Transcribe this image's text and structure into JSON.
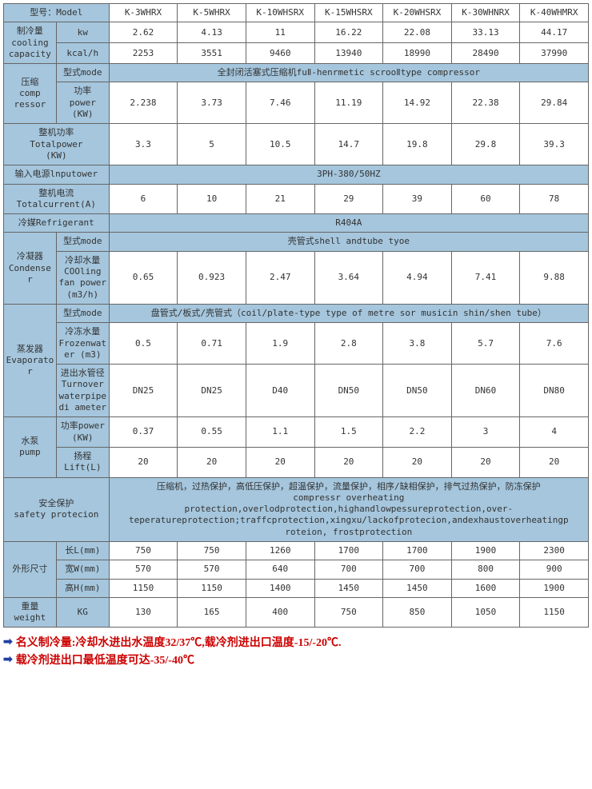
{
  "colors": {
    "header_bg": "#a5c6dd",
    "data_bg": "#ffffff",
    "border": "#666666",
    "note_arrow": "#2040a0",
    "note_text": "#cc0000"
  },
  "col_widths": {
    "label1": "9%",
    "label2": "9%",
    "data": "11.7%"
  },
  "models": [
    "K-3WHRX",
    "K-5WHRX",
    "K-10WHSRX",
    "K-15WHSRX",
    "K-20WHSRX",
    "K-30WHNRX",
    "K-40WHMRX"
  ],
  "labels": {
    "model": "型号：Model",
    "cooling_capacity": "制冷量\ncooling\ncapacity",
    "kw": "kw",
    "kcalh": "kcal/h",
    "compressor": "压缩\ncomp\nressor",
    "comp_mode": "型式mode",
    "comp_mode_val": "全封闭活塞式压缩机fuⅡ-henrmetic scrooⅡtype compressor",
    "comp_power": "功率\npower\n(KW)",
    "total_power": "整机功率\nTotalpower\n(KW)",
    "input_power": "输入电源lnputower",
    "input_power_val": "3PH-380/50HZ",
    "total_current": "整机电流Totalcurrent(A)",
    "refrigerant": "冷媒Refrigerant",
    "refrigerant_val": "R404A",
    "condenser": "冷凝器\nCondense\nr",
    "cond_mode": "型式mode",
    "cond_mode_val": "壳管式shell andtube tyoe",
    "cond_water": "冷却水量\nCOOling\nfan power\n(m3/h)",
    "evaporator": "蒸发器\nEvaporato\nr",
    "evap_mode": "型式mode",
    "evap_mode_val": "盘管式/板式/壳管式（coil/plate-type type of metre sor musicin shin/shen tube）",
    "evap_frozen": "冷冻水量\nFrozenwat\ner (m3)",
    "evap_pipe": "进出水管径\nTurnover\nwaterpipe\ndi ameter",
    "pump": "水泵\npump",
    "pump_power": "功率power\n(KW)",
    "pump_lift": "扬程\nLift(L)",
    "safety": "安全保护\nsafety protecion",
    "safety_val": "压缩机，过热保护，高低压保护，超温保护，流量保护，相序/缺相保护，排气过热保护，防冻保护\ncompressr overheating\nprotection,overlodprotection,highandlowpessureprotection,over-teperatureprotection;traffcprotection,xingxu/lackofprotecion,andexhaustoverheatingp\nroteion,    frostprotection",
    "dimensions": "外形尺寸",
    "len": "长L(mm)",
    "width": "宽W(mm)",
    "height": "高H(mm)",
    "weight": "重量\nweight",
    "kg": "KG"
  },
  "rows": {
    "kw": [
      "2.62",
      "4.13",
      "11",
      "16.22",
      "22.08",
      "33.13",
      "44.17"
    ],
    "kcalh": [
      "2253",
      "3551",
      "9460",
      "13940",
      "18990",
      "28490",
      "37990"
    ],
    "comp_power": [
      "2.238",
      "3.73",
      "7.46",
      "11.19",
      "14.92",
      "22.38",
      "29.84"
    ],
    "total_power": [
      "3.3",
      "5",
      "10.5",
      "14.7",
      "19.8",
      "29.8",
      "39.3"
    ],
    "total_current": [
      "6",
      "10",
      "21",
      "29",
      "39",
      "60",
      "78"
    ],
    "cond_water": [
      "0.65",
      "0.923",
      "2.47",
      "3.64",
      "4.94",
      "7.41",
      "9.88"
    ],
    "evap_frozen": [
      "0.5",
      "0.71",
      "1.9",
      "2.8",
      "3.8",
      "5.7",
      "7.6"
    ],
    "evap_pipe": [
      "DN25",
      "DN25",
      "D40",
      "DN50",
      "DN50",
      "DN60",
      "DN80"
    ],
    "pump_power": [
      "0.37",
      "0.55",
      "1.1",
      "1.5",
      "2.2",
      "3",
      "4"
    ],
    "pump_lift": [
      "20",
      "20",
      "20",
      "20",
      "20",
      "20",
      "20"
    ],
    "len": [
      "750",
      "750",
      "1260",
      "1700",
      "1700",
      "1900",
      "2300"
    ],
    "width": [
      "570",
      "570",
      "640",
      "700",
      "700",
      "800",
      "900"
    ],
    "height": [
      "1150",
      "1150",
      "1400",
      "1450",
      "1450",
      "1600",
      "1900"
    ],
    "kg": [
      "130",
      "165",
      "400",
      "750",
      "850",
      "1050",
      "1150"
    ]
  },
  "notes": [
    "名义制冷量:冷却水进出水温度32/37℃,载冷剂进出口温度-15/-20℃.",
    "载冷剂进出口最低温度可达-35/-40℃"
  ]
}
